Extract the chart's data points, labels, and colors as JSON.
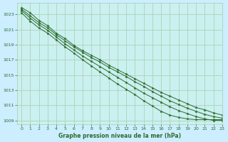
{
  "title": "Graphe pression niveau de la mer (hPa)",
  "bg_color": "#cceeff",
  "grid_color": "#aaccaa",
  "plot_bg": "#caf0f0",
  "line_color": "#2d6b2d",
  "xlim": [
    -0.5,
    23
  ],
  "ylim": [
    1008.5,
    1024.5
  ],
  "yticks": [
    1009,
    1011,
    1013,
    1015,
    1017,
    1019,
    1021,
    1023
  ],
  "xticks": [
    0,
    1,
    2,
    3,
    4,
    5,
    6,
    7,
    8,
    9,
    10,
    11,
    12,
    13,
    14,
    15,
    16,
    17,
    18,
    19,
    20,
    21,
    22,
    23
  ],
  "series": [
    [
      1023.9,
      1023.2,
      1022.2,
      1021.5,
      1020.5,
      1019.8,
      1018.9,
      1018.2,
      1017.6,
      1017.0,
      1016.3,
      1015.7,
      1015.1,
      1014.5,
      1013.9,
      1013.3,
      1012.7,
      1012.2,
      1011.7,
      1011.2,
      1010.7,
      1010.4,
      1010.0,
      1009.7
    ],
    [
      1023.7,
      1022.8,
      1021.9,
      1021.2,
      1020.3,
      1019.5,
      1018.7,
      1018.0,
      1017.3,
      1016.7,
      1016.0,
      1015.4,
      1014.8,
      1014.1,
      1013.5,
      1012.8,
      1012.2,
      1011.6,
      1011.1,
      1010.6,
      1010.2,
      1009.8,
      1009.5,
      1009.3
    ],
    [
      1023.5,
      1022.5,
      1021.6,
      1020.9,
      1020.0,
      1019.1,
      1018.3,
      1017.5,
      1016.8,
      1016.1,
      1015.4,
      1014.7,
      1014.0,
      1013.3,
      1012.6,
      1012.0,
      1011.4,
      1010.8,
      1010.3,
      1009.9,
      1009.5,
      1009.2,
      1009.0,
      1009.0
    ],
    [
      1023.2,
      1022.1,
      1021.2,
      1020.5,
      1019.6,
      1018.7,
      1017.9,
      1017.0,
      1016.2,
      1015.4,
      1014.6,
      1013.8,
      1013.1,
      1012.4,
      1011.6,
      1010.9,
      1010.2,
      1009.7,
      1009.4,
      1009.2,
      1009.1,
      1009.1,
      1009.1,
      1009.1
    ]
  ]
}
